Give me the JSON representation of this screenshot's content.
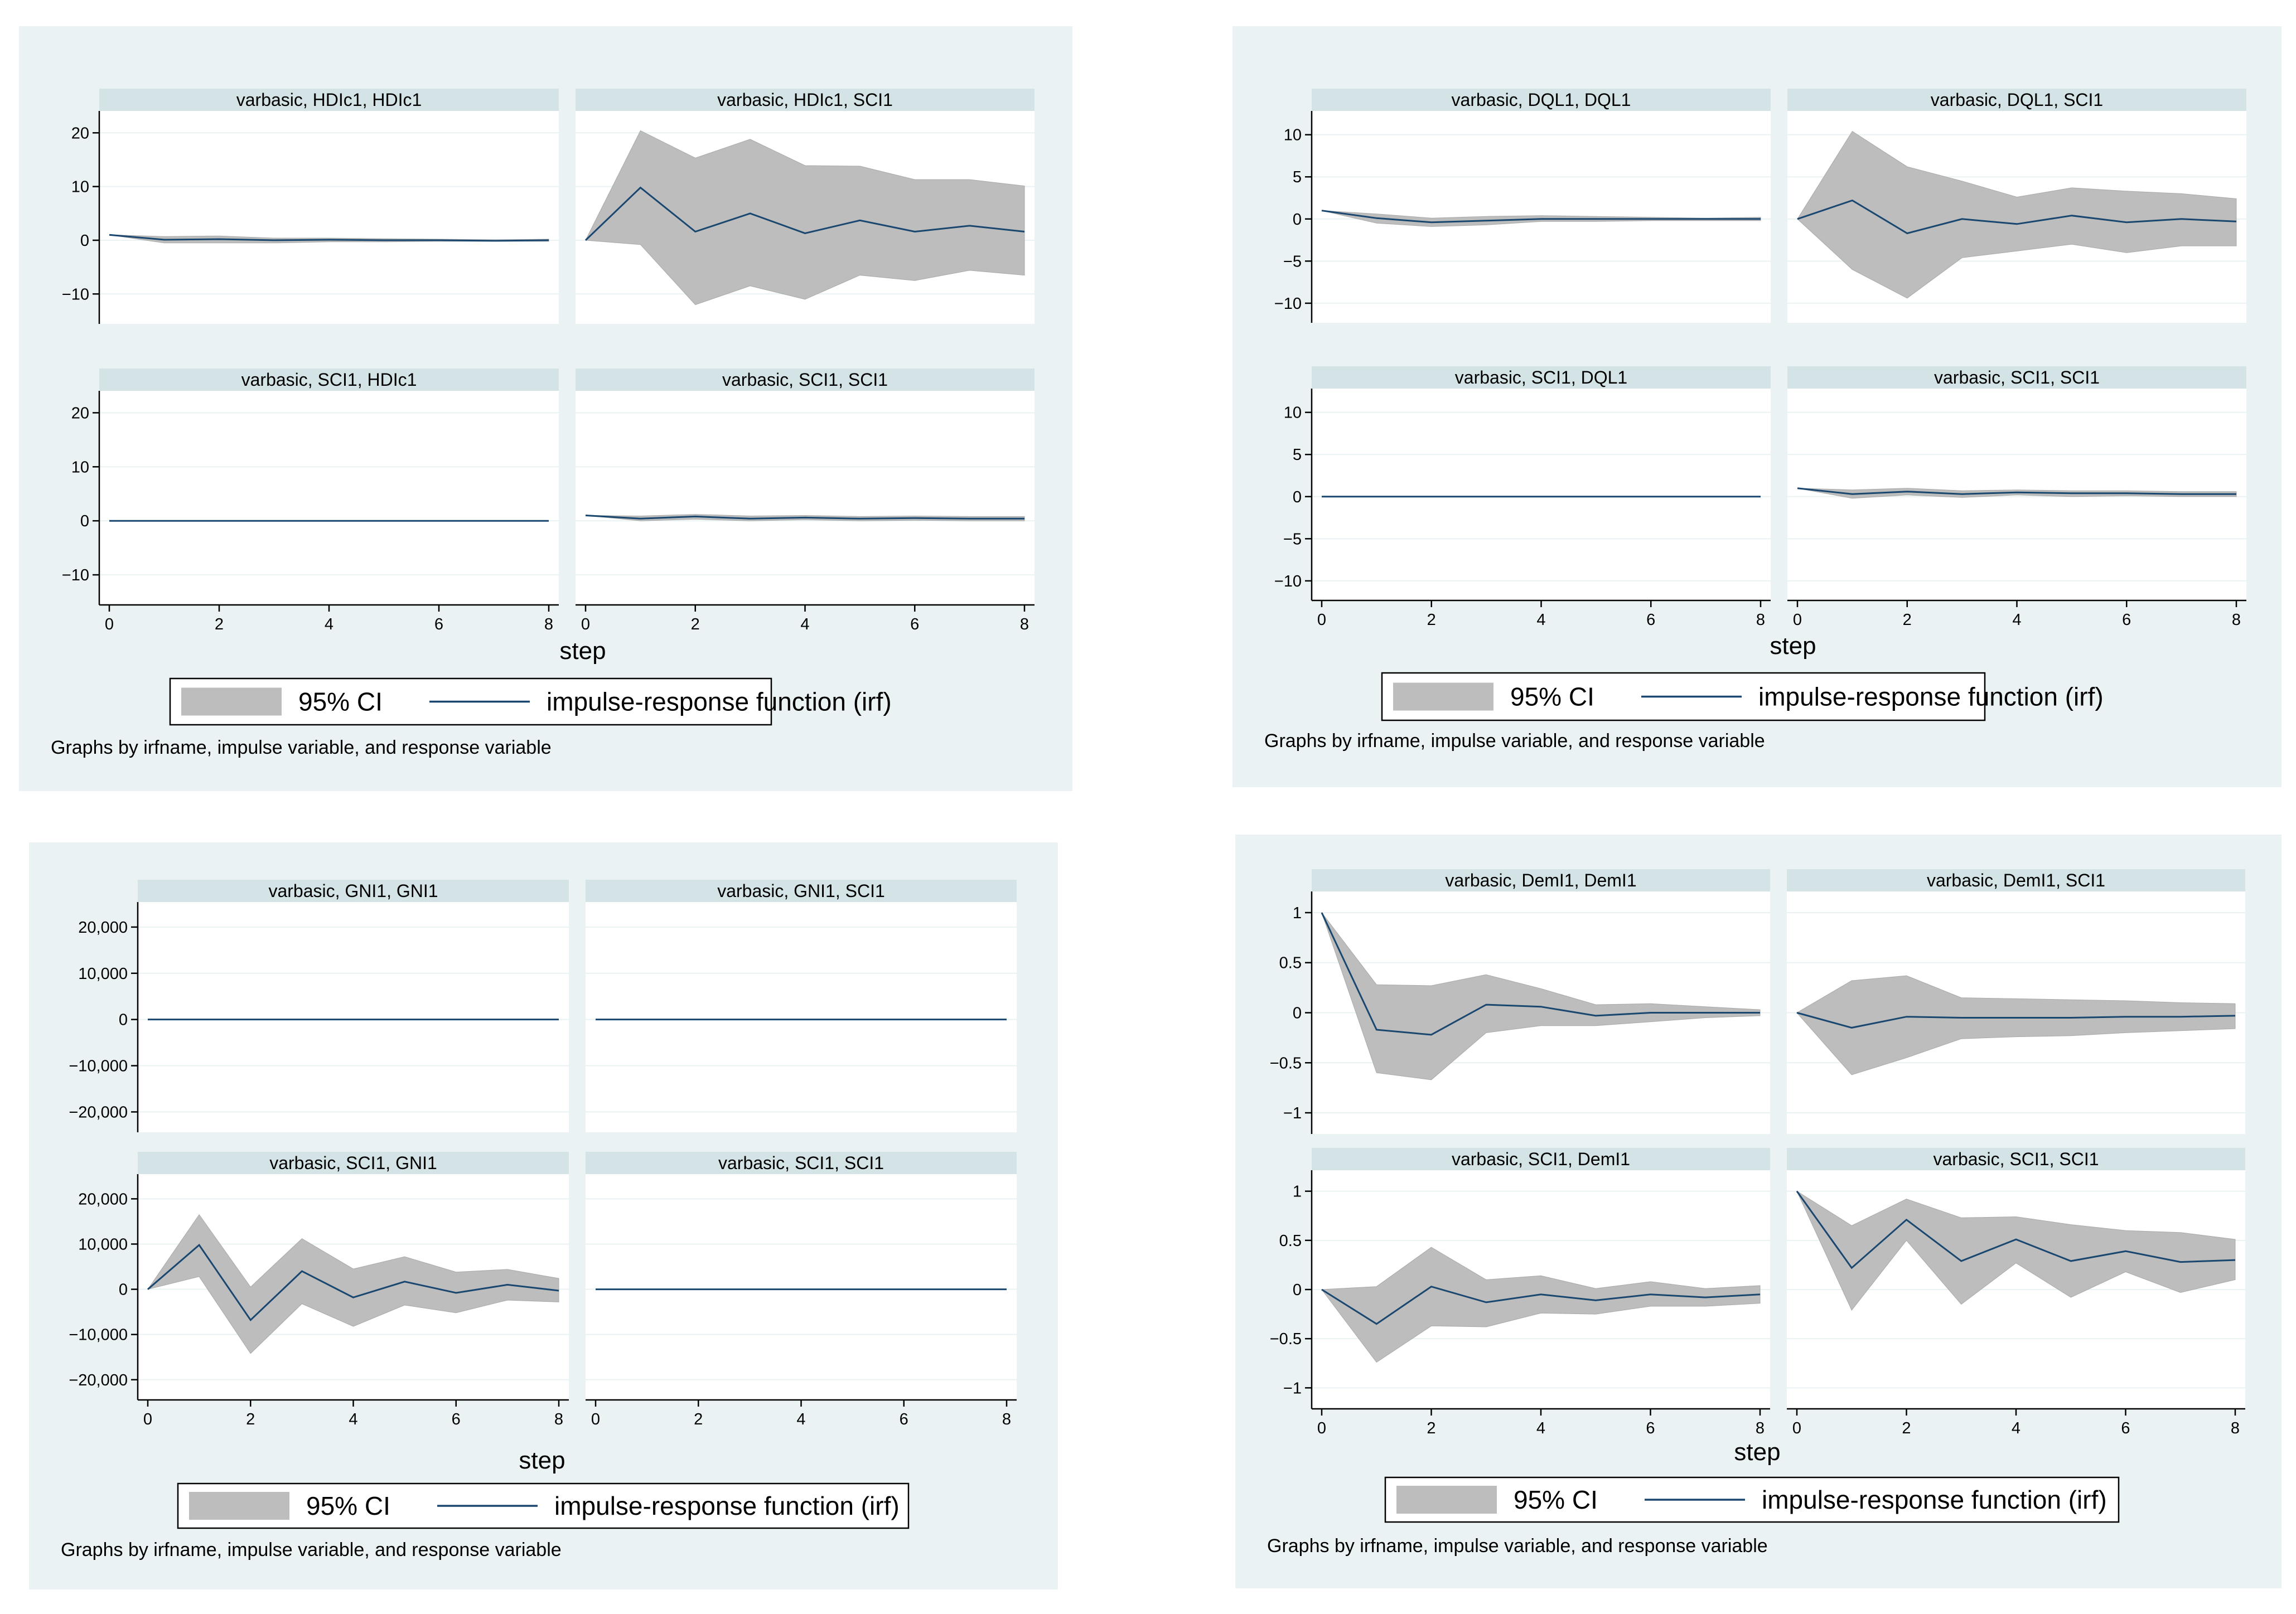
{
  "legend": {
    "ci_label": "95% CI",
    "irf_label": "impulse-response function (irf)"
  },
  "x_title": "step",
  "note": "Graphs by irfname, impulse variable, and response variable",
  "colors": {
    "panel_bg": "#eaf2f3",
    "strip": "#d3e3e6",
    "band": "#bdbdbd",
    "irf": "#1a476f"
  },
  "chart_data": [
    {
      "id": "fig-hdi",
      "type": "line",
      "xlabel": "step",
      "x_ticks": [
        0,
        2,
        4,
        6,
        8
      ],
      "y_ticks": [
        -10,
        0,
        10,
        20
      ],
      "y_tick_labels": [
        "−10",
        "0",
        "10",
        "20"
      ],
      "ylim": [
        -13.5,
        22
      ],
      "x": [
        0,
        1,
        2,
        3,
        4,
        5,
        6,
        7,
        8
      ],
      "panels": [
        {
          "title": "varbasic, HDIc1, HDIc1",
          "irf": [
            1,
            0.1,
            0.2,
            0,
            0.1,
            0,
            0,
            -0.1,
            0
          ],
          "lower": [
            1,
            -0.5,
            -0.5,
            -0.5,
            -0.3,
            -0.3,
            -0.2,
            -0.2,
            -0.2
          ],
          "upper": [
            1,
            0.7,
            0.8,
            0.4,
            0.4,
            0.3,
            0.2,
            0.1,
            0.2
          ]
        },
        {
          "title": "varbasic, HDIc1, SCI1",
          "irf": [
            0,
            9.8,
            1.6,
            5,
            1.3,
            3.7,
            1.6,
            2.7,
            1.6
          ],
          "lower": [
            0,
            -0.8,
            -12,
            -8.5,
            -11,
            -6.5,
            -7.5,
            -5.6,
            -6.5
          ],
          "upper": [
            0,
            20.4,
            15.3,
            18.8,
            13.9,
            13.8,
            11.3,
            11.3,
            10.1
          ]
        },
        {
          "title": "varbasic, SCI1, HDIc1",
          "irf": [
            0,
            0,
            0,
            0,
            0,
            0,
            0,
            0,
            0
          ],
          "lower": [
            0,
            0,
            0,
            0,
            0,
            0,
            0,
            0,
            0
          ],
          "upper": [
            0,
            0,
            0,
            0,
            0,
            0,
            0,
            0,
            0
          ]
        },
        {
          "title": "varbasic, SCI1, SCI1",
          "irf": [
            1,
            0.4,
            0.8,
            0.4,
            0.6,
            0.4,
            0.5,
            0.4,
            0.4
          ],
          "lower": [
            1,
            0,
            0.3,
            0,
            0.2,
            0,
            0.1,
            0,
            0
          ],
          "upper": [
            1,
            0.9,
            1.2,
            0.9,
            1,
            0.8,
            0.9,
            0.8,
            0.8
          ]
        }
      ]
    },
    {
      "id": "fig-dql",
      "type": "line",
      "xlabel": "step",
      "x_ticks": [
        0,
        2,
        4,
        6,
        8
      ],
      "y_ticks": [
        -10,
        -5,
        0,
        5,
        10
      ],
      "y_tick_labels": [
        "−10",
        "−5",
        "0",
        "5",
        "10"
      ],
      "ylim": [
        -11,
        11.5
      ],
      "x": [
        0,
        1,
        2,
        3,
        4,
        5,
        6,
        7,
        8
      ],
      "panels": [
        {
          "title": "varbasic, DQL1, DQL1",
          "irf": [
            1,
            0.1,
            -0.4,
            -0.2,
            0,
            0,
            0,
            0,
            0
          ],
          "lower": [
            1,
            -0.5,
            -0.9,
            -0.7,
            -0.3,
            -0.3,
            -0.2,
            -0.2,
            -0.2
          ],
          "upper": [
            1,
            0.6,
            0.1,
            0.3,
            0.4,
            0.3,
            0.2,
            0.1,
            0.2
          ]
        },
        {
          "title": "varbasic, DQL1, SCI1",
          "irf": [
            0,
            2.2,
            -1.7,
            0,
            -0.6,
            0.4,
            -0.4,
            0,
            -0.3
          ],
          "lower": [
            0,
            -6,
            -9.4,
            -4.6,
            -3.8,
            -3,
            -4,
            -3.2,
            -3.2
          ],
          "upper": [
            0,
            10.4,
            6.2,
            4.5,
            2.6,
            3.7,
            3.3,
            3,
            2.4
          ]
        },
        {
          "title": "varbasic, SCI1, DQL1",
          "irf": [
            0,
            0,
            0,
            0,
            0,
            0,
            0,
            0,
            0
          ],
          "lower": [
            0,
            0,
            0,
            0,
            0,
            0,
            0,
            0,
            0
          ],
          "upper": [
            0,
            0,
            0,
            0,
            0,
            0,
            0,
            0,
            0
          ]
        },
        {
          "title": "varbasic, SCI1, SCI1",
          "irf": [
            1,
            0.3,
            0.6,
            0.3,
            0.5,
            0.4,
            0.4,
            0.3,
            0.3
          ],
          "lower": [
            1,
            -0.2,
            0.2,
            -0.1,
            0.2,
            0,
            0.1,
            0,
            0
          ],
          "upper": [
            1,
            0.8,
            1,
            0.7,
            0.8,
            0.7,
            0.7,
            0.6,
            0.6
          ]
        }
      ]
    },
    {
      "id": "fig-gni",
      "type": "line",
      "xlabel": "step",
      "x_ticks": [
        0,
        2,
        4,
        6,
        8
      ],
      "y_ticks": [
        -20000,
        -10000,
        0,
        10000,
        20000
      ],
      "y_tick_labels": [
        "−20,000",
        "−10,000",
        "0",
        "10,000",
        "20,000"
      ],
      "ylim": [
        -22000,
        23000
      ],
      "x": [
        0,
        1,
        2,
        3,
        4,
        5,
        6,
        7,
        8
      ],
      "panels": [
        {
          "title": "varbasic, GNI1, GNI1",
          "irf": [
            0,
            0,
            0,
            0,
            0,
            0,
            0,
            0,
            0
          ],
          "lower": [
            0,
            0,
            0,
            0,
            0,
            0,
            0,
            0,
            0
          ],
          "upper": [
            0,
            0,
            0,
            0,
            0,
            0,
            0,
            0,
            0
          ]
        },
        {
          "title": "varbasic, GNI1, SCI1",
          "irf": [
            0,
            0,
            0,
            0,
            0,
            0,
            0,
            0,
            0
          ],
          "lower": [
            0,
            0,
            0,
            0,
            0,
            0,
            0,
            0,
            0
          ],
          "upper": [
            0,
            0,
            0,
            0,
            0,
            0,
            0,
            0,
            0
          ]
        },
        {
          "title": "varbasic, SCI1, GNI1",
          "irf": [
            0,
            9800,
            -6800,
            4000,
            -1800,
            1700,
            -800,
            1000,
            -300
          ],
          "lower": [
            0,
            2800,
            -14200,
            -3200,
            -8200,
            -3500,
            -5200,
            -2400,
            -2800
          ],
          "upper": [
            0,
            16500,
            500,
            11200,
            4500,
            7200,
            3800,
            4400,
            2400
          ]
        },
        {
          "title": "varbasic, SCI1, SCI1",
          "irf": [
            0,
            0,
            0,
            0,
            0,
            0,
            0,
            0,
            0
          ],
          "lower": [
            0,
            0,
            0,
            0,
            0,
            0,
            0,
            0,
            0
          ],
          "upper": [
            0,
            0,
            0,
            0,
            0,
            0,
            0,
            0,
            0
          ]
        }
      ]
    },
    {
      "id": "fig-dem",
      "type": "line",
      "xlabel": "step",
      "x_ticks": [
        0,
        2,
        4,
        6,
        8
      ],
      "y_ticks": [
        -1,
        -0.5,
        0,
        0.5,
        1
      ],
      "y_tick_labels": [
        "−1",
        "−0.5",
        "0",
        "0.5",
        "1"
      ],
      "ylim": [
        -1.1,
        1.1
      ],
      "x": [
        0,
        1,
        2,
        3,
        4,
        5,
        6,
        7,
        8
      ],
      "panels": [
        {
          "title": "varbasic, DemI1, DemI1",
          "irf": [
            1,
            -0.17,
            -0.22,
            0.08,
            0.06,
            -0.03,
            0,
            0,
            0
          ],
          "lower": [
            1,
            -0.6,
            -0.67,
            -0.2,
            -0.13,
            -0.13,
            -0.09,
            -0.05,
            -0.03
          ],
          "upper": [
            1,
            0.28,
            0.27,
            0.38,
            0.24,
            0.08,
            0.09,
            0.06,
            0.03
          ]
        },
        {
          "title": "varbasic, DemI1, SCI1",
          "irf": [
            0,
            -0.15,
            -0.04,
            -0.05,
            -0.05,
            -0.05,
            -0.04,
            -0.04,
            -0.03
          ],
          "lower": [
            0,
            -0.62,
            -0.45,
            -0.26,
            -0.24,
            -0.23,
            -0.2,
            -0.18,
            -0.16
          ],
          "upper": [
            0,
            0.32,
            0.37,
            0.15,
            0.14,
            0.13,
            0.12,
            0.1,
            0.09
          ]
        },
        {
          "title": "varbasic, SCI1, DemI1",
          "irf": [
            0,
            -0.35,
            0.03,
            -0.13,
            -0.05,
            -0.11,
            -0.05,
            -0.08,
            -0.05
          ],
          "lower": [
            0,
            -0.74,
            -0.37,
            -0.38,
            -0.24,
            -0.25,
            -0.17,
            -0.17,
            -0.14
          ],
          "upper": [
            0,
            0.03,
            0.43,
            0.1,
            0.14,
            0.01,
            0.08,
            0.01,
            0.04
          ]
        },
        {
          "title": "varbasic, SCI1, SCI1",
          "irf": [
            1,
            0.22,
            0.71,
            0.29,
            0.51,
            0.29,
            0.39,
            0.28,
            0.3
          ],
          "lower": [
            1,
            -0.21,
            0.5,
            -0.15,
            0.27,
            -0.08,
            0.18,
            -0.03,
            0.1
          ],
          "upper": [
            1,
            0.65,
            0.92,
            0.73,
            0.74,
            0.66,
            0.6,
            0.58,
            0.51
          ]
        }
      ]
    }
  ]
}
